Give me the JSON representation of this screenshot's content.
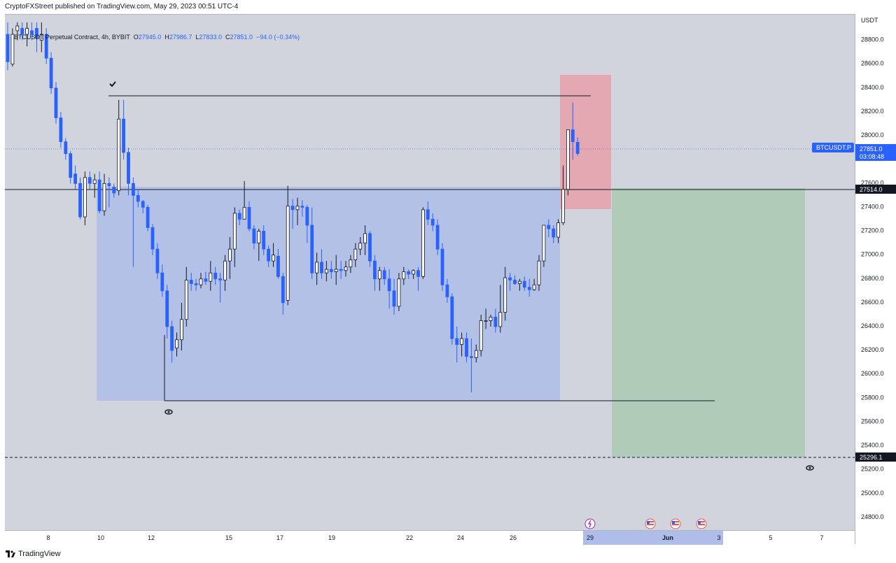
{
  "header": {
    "publisher_line": "CryptoFXStreet published on TradingView.com, May 29, 2023 00:51 UTC-4"
  },
  "legend": {
    "symbol": "BTCUSDT Perpetual Contract, 4h, BYBIT",
    "open_label": "O",
    "open": "27945.0",
    "high_label": "H",
    "high": "27986.7",
    "low_label": "L",
    "low": "27833.0",
    "close_label": "C",
    "close": "27851.0",
    "change": "−94.0 (−0.34%)"
  },
  "price_axis": {
    "currency": "USDT",
    "ticks": [
      "28800.0",
      "28600.0",
      "28400.0",
      "28200.0",
      "28000.0",
      "27800.0",
      "27600.0",
      "27400.0",
      "27200.0",
      "27000.0",
      "26800.0",
      "26600.0",
      "26400.0",
      "26200.0",
      "26000.0",
      "25800.0",
      "25600.0",
      "25400.0",
      "25200.0",
      "25000.0",
      "24800.0"
    ],
    "current_symbol_label": "BTCUSDT.P",
    "current_price": "27851.0",
    "countdown": "03:08:48",
    "entry_label": "27514.0",
    "target_label": "25296.1"
  },
  "time_axis": {
    "ticks": [
      "8",
      "10",
      "12",
      "15",
      "17",
      "19",
      "22",
      "24",
      "26",
      "29",
      "Jun",
      "3",
      "5",
      "7"
    ]
  },
  "footer": {
    "brand": "TradingView"
  },
  "colors": {
    "up_body": "#ffffff",
    "down_body": "#2962ff",
    "wick": "#131722",
    "range_box": "#9fb4ee",
    "stop_zone": "#e8a0aa",
    "target_zone": "#a5d3a9",
    "price_line": "#2962ff"
  },
  "icons": [
    "check-mark-icon",
    "eye-icon",
    "lightning-event-icon",
    "us-flag-event-icon"
  ],
  "chart_data": {
    "type": "candlestick",
    "symbol": "BTCUSDT.P",
    "ylim": [
      24700,
      28950
    ],
    "xlabels": [
      "8",
      "10",
      "12",
      "15",
      "17",
      "19",
      "22",
      "24",
      "26",
      "29",
      "Jun",
      "3",
      "5",
      "7"
    ],
    "levels": {
      "entry": 27514.0,
      "target": 25296.1,
      "current": 27851.0
    },
    "range_box": {
      "top": 27550,
      "bottom": 25780
    },
    "stop_zone": {
      "top": 28470,
      "bottom": 27350
    },
    "target_zone": {
      "top": 27550,
      "bottom": 25296.1
    },
    "range_high_line": 28290,
    "range_low_line": 25775,
    "series": [
      {
        "values": [
          [
            28850,
            28950,
            28550,
            28620
          ],
          [
            28600,
            28900,
            28580,
            28850
          ],
          [
            28880,
            28950,
            28800,
            28920
          ],
          [
            28900,
            28950,
            28800,
            28850
          ],
          [
            28850,
            28950,
            28750,
            28900
          ],
          [
            28880,
            28950,
            28800,
            28850
          ],
          [
            28900,
            28950,
            28700,
            28820
          ],
          [
            28800,
            28950,
            28700,
            28850
          ],
          [
            28850,
            28900,
            28600,
            28650
          ],
          [
            28650,
            28700,
            28350,
            28400
          ],
          [
            28400,
            28450,
            28100,
            28150
          ],
          [
            28150,
            28200,
            27900,
            27950
          ],
          [
            27950,
            27980,
            27800,
            27850
          ],
          [
            27850,
            27870,
            27600,
            27650
          ],
          [
            27680,
            27750,
            27550,
            27600
          ],
          [
            27600,
            27650,
            27300,
            27320
          ],
          [
            27320,
            27700,
            27250,
            27650
          ],
          [
            27650,
            27700,
            27550,
            27600
          ],
          [
            27600,
            27680,
            27480,
            27630
          ],
          [
            27630,
            27700,
            27350,
            27370
          ],
          [
            27370,
            27680,
            27330,
            27600
          ],
          [
            27600,
            27650,
            27400,
            27580
          ],
          [
            27570,
            27600,
            27480,
            27520
          ],
          [
            27540,
            28300,
            27500,
            28140
          ],
          [
            28140,
            28300,
            27800,
            27860
          ],
          [
            27860,
            27900,
            27500,
            27600
          ],
          [
            27600,
            27650,
            26900,
            27500
          ],
          [
            27500,
            27550,
            27400,
            27450
          ],
          [
            27450,
            27460,
            27350,
            27400
          ],
          [
            27400,
            27420,
            27200,
            27230
          ],
          [
            27230,
            27260,
            27000,
            27050
          ],
          [
            27050,
            27100,
            26800,
            26850
          ],
          [
            26850,
            26920,
            26650,
            26700
          ],
          [
            26700,
            26750,
            26300,
            26400
          ],
          [
            26400,
            26450,
            26100,
            26200
          ],
          [
            26220,
            26350,
            26150,
            26290
          ],
          [
            26290,
            26600,
            26200,
            26460
          ],
          [
            26460,
            26900,
            26400,
            26790
          ],
          [
            26790,
            26850,
            26700,
            26760
          ],
          [
            26760,
            26800,
            26700,
            26750
          ],
          [
            26750,
            26850,
            26720,
            26800
          ],
          [
            26800,
            26860,
            26750,
            26780
          ],
          [
            26780,
            26950,
            26700,
            26850
          ],
          [
            26850,
            26900,
            26750,
            26800
          ],
          [
            26800,
            26850,
            26600,
            26790
          ],
          [
            26790,
            27000,
            26700,
            26950
          ],
          [
            26950,
            27150,
            26800,
            27050
          ],
          [
            27050,
            27400,
            26900,
            27350
          ],
          [
            27350,
            27380,
            27250,
            27300
          ],
          [
            27300,
            27620,
            27300,
            27400
          ],
          [
            27400,
            27450,
            27200,
            27220
          ],
          [
            27220,
            27250,
            27050,
            27100
          ],
          [
            27100,
            27220,
            26950,
            27200
          ],
          [
            27200,
            27250,
            27000,
            27050
          ],
          [
            27050,
            27080,
            26900,
            26950
          ],
          [
            26950,
            27100,
            26900,
            27000
          ],
          [
            26990,
            27050,
            26800,
            26820
          ],
          [
            26820,
            26850,
            26500,
            26600
          ],
          [
            26620,
            27580,
            26580,
            27410
          ],
          [
            27410,
            27470,
            27220,
            27380
          ],
          [
            27380,
            27480,
            27250,
            27410
          ],
          [
            27410,
            27460,
            27320,
            27400
          ],
          [
            27400,
            27420,
            27100,
            27250
          ],
          [
            27250,
            27400,
            26800,
            26850
          ],
          [
            26850,
            27020,
            26750,
            26940
          ],
          [
            26940,
            27050,
            26800,
            26850
          ],
          [
            26850,
            26950,
            26780,
            26880
          ],
          [
            26880,
            26950,
            26800,
            26860
          ],
          [
            26860,
            27000,
            26750,
            26880
          ],
          [
            26880,
            26950,
            26800,
            26870
          ],
          [
            26870,
            26950,
            26820,
            26900
          ],
          [
            26900,
            27000,
            26850,
            26960
          ],
          [
            26960,
            27100,
            26900,
            27050
          ],
          [
            27050,
            27150,
            27000,
            27100
          ],
          [
            27100,
            27250,
            27000,
            27180
          ],
          [
            27180,
            27200,
            26900,
            26950
          ],
          [
            26950,
            27000,
            26700,
            26800
          ],
          [
            26800,
            26900,
            26700,
            26870
          ],
          [
            26870,
            26900,
            26750,
            26800
          ],
          [
            26800,
            26880,
            26550,
            26700
          ],
          [
            26700,
            26800,
            26500,
            26570
          ],
          [
            26570,
            26850,
            26530,
            26800
          ],
          [
            26800,
            26900,
            26750,
            26860
          ],
          [
            26860,
            26880,
            26800,
            26840
          ],
          [
            26840,
            26880,
            26800,
            26870
          ],
          [
            26870,
            26900,
            26700,
            26820
          ],
          [
            26820,
            27400,
            26800,
            27380
          ],
          [
            27380,
            27450,
            27250,
            27300
          ],
          [
            27300,
            27350,
            27200,
            27250
          ],
          [
            27250,
            27300,
            27000,
            27050
          ],
          [
            27050,
            27100,
            26700,
            26750
          ],
          [
            26750,
            26800,
            26600,
            26650
          ],
          [
            26650,
            26680,
            26250,
            26300
          ],
          [
            26300,
            26400,
            26100,
            26250
          ],
          [
            26250,
            26350,
            26150,
            26300
          ],
          [
            26300,
            26350,
            26100,
            26150
          ],
          [
            26150,
            26300,
            25850,
            26140
          ],
          [
            26140,
            26250,
            26100,
            26200
          ],
          [
            26200,
            26500,
            26150,
            26450
          ],
          [
            26450,
            26550,
            26380,
            26450
          ],
          [
            26450,
            26500,
            26400,
            26480
          ],
          [
            26480,
            26550,
            26350,
            26400
          ],
          [
            26400,
            26750,
            26350,
            26520
          ],
          [
            26520,
            26900,
            26450,
            26810
          ],
          [
            26810,
            26850,
            26700,
            26790
          ],
          [
            26790,
            26830,
            26750,
            26760
          ],
          [
            26760,
            26800,
            26700,
            26780
          ],
          [
            26780,
            26820,
            26700,
            26730
          ],
          [
            26730,
            26800,
            26650,
            26710
          ],
          [
            26710,
            26800,
            26700,
            26750
          ],
          [
            26750,
            27000,
            26700,
            26950
          ],
          [
            26950,
            27250,
            26900,
            27250
          ],
          [
            27250,
            27300,
            27150,
            27220
          ],
          [
            27220,
            27250,
            27100,
            27150
          ],
          [
            27150,
            27300,
            27100,
            27270
          ],
          [
            27270,
            27750,
            27250,
            27550
          ],
          [
            27550,
            28000,
            27500,
            28050
          ],
          [
            28050,
            28280,
            27800,
            27950
          ],
          [
            27945,
            27987,
            27833,
            27851
          ]
        ]
      }
    ]
  }
}
